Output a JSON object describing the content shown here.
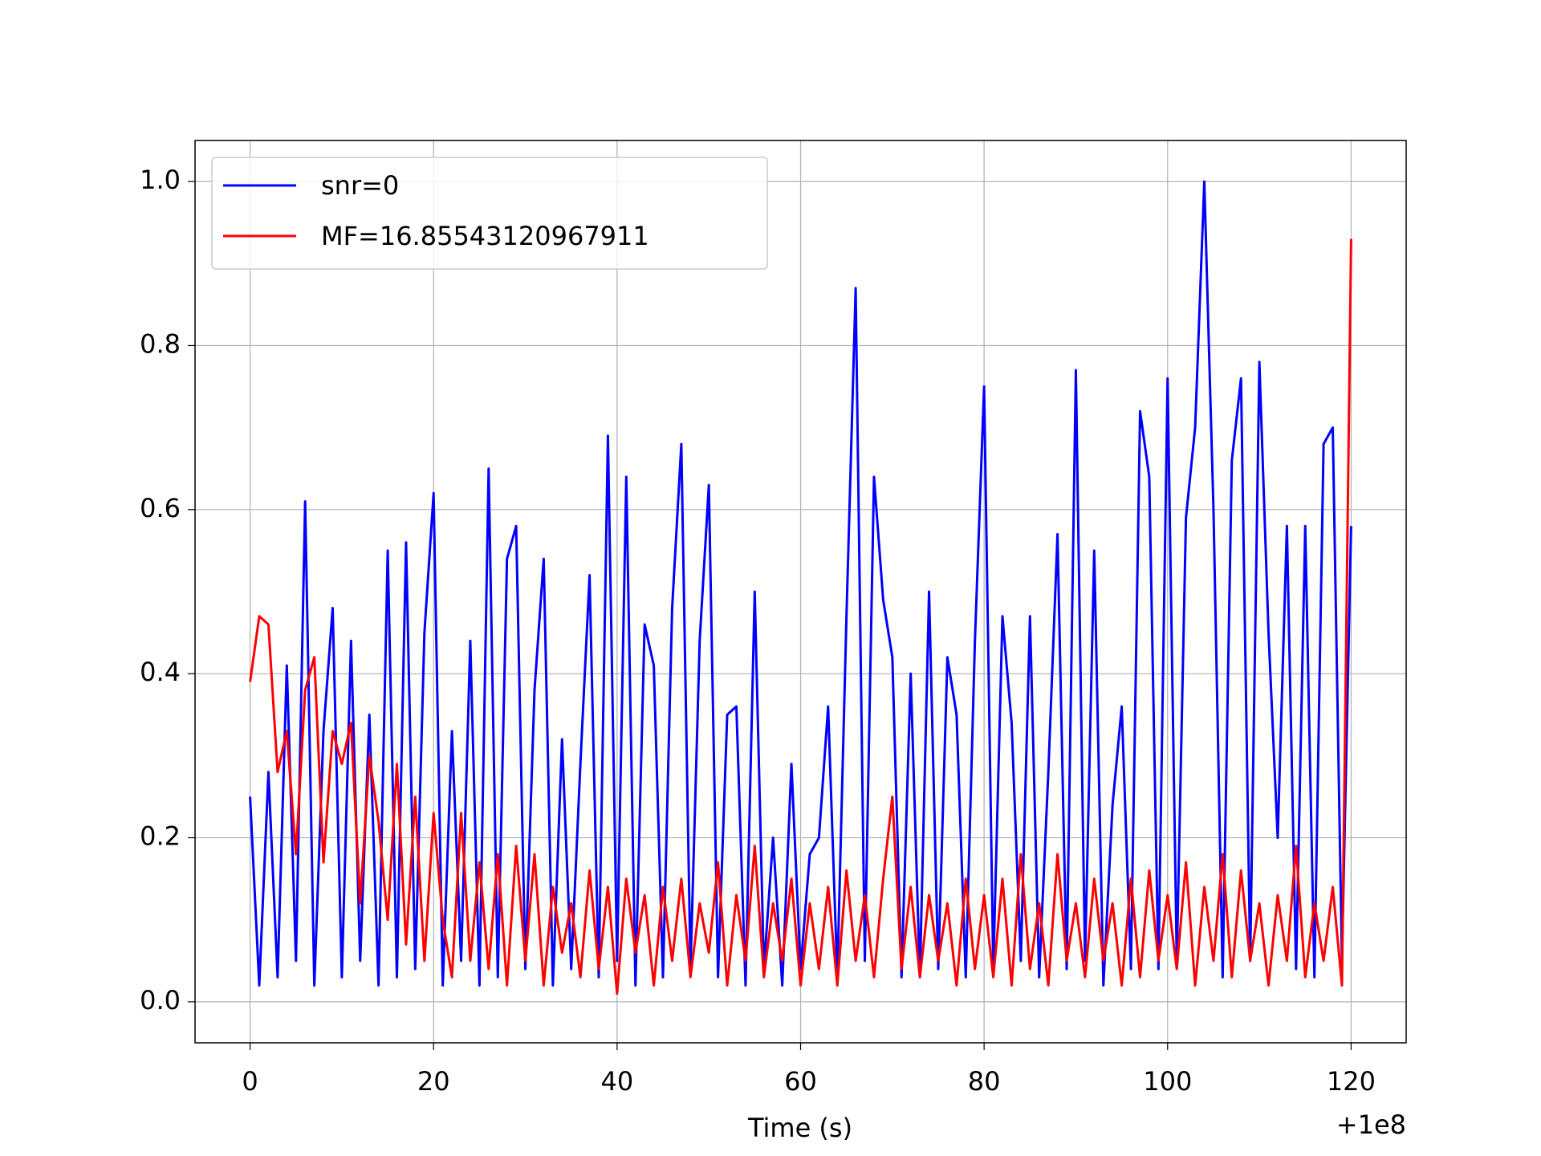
{
  "chart_data": {
    "type": "line",
    "x_label": "Time (s)",
    "x_offset_label": "+1e8",
    "x": [
      0,
      1,
      2,
      3,
      4,
      5,
      6,
      7,
      8,
      9,
      10,
      11,
      12,
      13,
      14,
      15,
      16,
      17,
      18,
      19,
      20,
      21,
      22,
      23,
      24,
      25,
      26,
      27,
      28,
      29,
      30,
      31,
      32,
      33,
      34,
      35,
      36,
      37,
      38,
      39,
      40,
      41,
      42,
      43,
      44,
      45,
      46,
      47,
      48,
      49,
      50,
      51,
      52,
      53,
      54,
      55,
      56,
      57,
      58,
      59,
      60,
      61,
      62,
      63,
      64,
      65,
      66,
      67,
      68,
      69,
      70,
      71,
      72,
      73,
      74,
      75,
      76,
      77,
      78,
      79,
      80,
      81,
      82,
      83,
      84,
      85,
      86,
      87,
      88,
      89,
      90,
      91,
      92,
      93,
      94,
      95,
      96,
      97,
      98,
      99,
      100,
      101,
      102,
      103,
      104,
      105,
      106,
      107,
      108,
      109,
      110,
      111,
      112,
      113,
      114,
      115,
      116,
      117,
      118,
      119,
      120
    ],
    "series": [
      {
        "name": "snr=0",
        "color": "#0000ff",
        "values": [
          0.25,
          0.02,
          0.28,
          0.03,
          0.41,
          0.05,
          0.61,
          0.02,
          0.33,
          0.48,
          0.03,
          0.44,
          0.05,
          0.35,
          0.02,
          0.55,
          0.03,
          0.56,
          0.04,
          0.45,
          0.62,
          0.02,
          0.33,
          0.05,
          0.44,
          0.02,
          0.65,
          0.03,
          0.54,
          0.58,
          0.04,
          0.38,
          0.54,
          0.02,
          0.32,
          0.04,
          0.29,
          0.52,
          0.03,
          0.69,
          0.05,
          0.64,
          0.02,
          0.46,
          0.41,
          0.03,
          0.48,
          0.68,
          0.04,
          0.44,
          0.63,
          0.03,
          0.35,
          0.36,
          0.02,
          0.5,
          0.04,
          0.2,
          0.02,
          0.29,
          0.04,
          0.18,
          0.2,
          0.36,
          0.03,
          0.47,
          0.87,
          0.05,
          0.64,
          0.49,
          0.42,
          0.03,
          0.4,
          0.03,
          0.5,
          0.04,
          0.42,
          0.35,
          0.03,
          0.44,
          0.75,
          0.04,
          0.47,
          0.34,
          0.05,
          0.47,
          0.03,
          0.28,
          0.57,
          0.04,
          0.77,
          0.05,
          0.55,
          0.02,
          0.24,
          0.36,
          0.04,
          0.72,
          0.64,
          0.04,
          0.76,
          0.05,
          0.59,
          0.7,
          1.0,
          0.6,
          0.03,
          0.66,
          0.76,
          0.05,
          0.78,
          0.45,
          0.2,
          0.58,
          0.04,
          0.58,
          0.03,
          0.68,
          0.7,
          0.05,
          0.58
        ]
      },
      {
        "name": "MF=16.85543120967911",
        "color": "#ff0000",
        "values": [
          0.39,
          0.47,
          0.46,
          0.28,
          0.33,
          0.18,
          0.38,
          0.42,
          0.17,
          0.33,
          0.29,
          0.34,
          0.12,
          0.3,
          0.22,
          0.1,
          0.29,
          0.07,
          0.25,
          0.05,
          0.23,
          0.1,
          0.03,
          0.23,
          0.05,
          0.17,
          0.04,
          0.18,
          0.02,
          0.19,
          0.05,
          0.18,
          0.02,
          0.14,
          0.06,
          0.12,
          0.03,
          0.16,
          0.04,
          0.14,
          0.01,
          0.15,
          0.06,
          0.13,
          0.02,
          0.14,
          0.05,
          0.15,
          0.03,
          0.12,
          0.06,
          0.17,
          0.02,
          0.13,
          0.05,
          0.19,
          0.03,
          0.12,
          0.05,
          0.15,
          0.02,
          0.12,
          0.04,
          0.14,
          0.02,
          0.16,
          0.05,
          0.13,
          0.03,
          0.15,
          0.25,
          0.04,
          0.14,
          0.03,
          0.13,
          0.05,
          0.12,
          0.02,
          0.15,
          0.04,
          0.13,
          0.03,
          0.15,
          0.02,
          0.18,
          0.04,
          0.12,
          0.02,
          0.18,
          0.05,
          0.12,
          0.03,
          0.15,
          0.05,
          0.12,
          0.02,
          0.15,
          0.03,
          0.16,
          0.05,
          0.13,
          0.04,
          0.17,
          0.02,
          0.14,
          0.05,
          0.18,
          0.03,
          0.16,
          0.05,
          0.12,
          0.02,
          0.13,
          0.05,
          0.19,
          0.03,
          0.12,
          0.05,
          0.14,
          0.02,
          0.93
        ]
      }
    ],
    "xlim": [
      -6,
      126
    ],
    "xticks": [
      0,
      20,
      40,
      60,
      80,
      100,
      120
    ],
    "ylim": [
      -0.05,
      1.05
    ],
    "yticks": [
      {
        "value": 0,
        "label": "0.0"
      },
      0.2,
      0.4,
      0.6,
      0.8,
      {
        "value": 1,
        "label": "1.0"
      }
    ],
    "grid": true,
    "legend": "upper left"
  }
}
